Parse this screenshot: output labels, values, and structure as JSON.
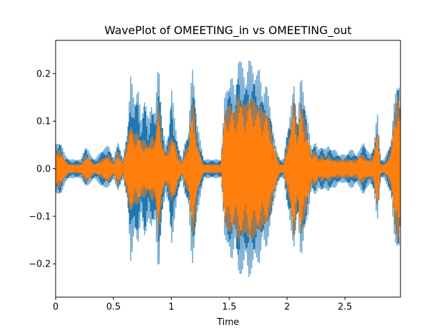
{
  "chart_data": {
    "type": "line",
    "title": "WavePlot of OMEETING_in vs OMEETING_out",
    "xlabel": "Time",
    "ylabel": "",
    "xlim": [
      0,
      2.98
    ],
    "ylim": [
      -0.27,
      0.27
    ],
    "grid": false,
    "x_ticks": [
      {
        "value": 0,
        "label": "0"
      },
      {
        "value": 0.5,
        "label": "0.5"
      },
      {
        "value": 1,
        "label": "1"
      },
      {
        "value": 1.5,
        "label": "1.5"
      },
      {
        "value": 2,
        "label": "2"
      },
      {
        "value": 2.5,
        "label": "2.5"
      }
    ],
    "y_ticks": [
      {
        "value": 0.2,
        "label": "0.2"
      },
      {
        "value": 0.1,
        "label": "0.1"
      },
      {
        "value": 0.0,
        "label": "0.0"
      },
      {
        "value": -0.1,
        "label": "−0.1"
      },
      {
        "value": -0.2,
        "label": "−0.2"
      }
    ],
    "series": [
      {
        "color": "#1f77b4",
        "envelope": {
          "x": [
            0,
            0.04,
            0.08,
            0.12,
            0.16,
            0.2,
            0.22,
            0.26,
            0.3,
            0.34,
            0.4,
            0.46,
            0.5,
            0.54,
            0.58,
            0.62,
            0.65,
            0.68,
            0.71,
            0.74,
            0.77,
            0.8,
            0.83,
            0.86,
            0.89,
            0.92,
            0.95,
            0.98,
            1.0,
            1.03,
            1.06,
            1.09,
            1.12,
            1.15,
            1.18,
            1.2,
            1.22,
            1.25,
            1.28,
            1.31,
            1.34,
            1.37,
            1.4,
            1.43,
            1.46,
            1.49,
            1.52,
            1.55,
            1.58,
            1.61,
            1.64,
            1.67,
            1.7,
            1.73,
            1.76,
            1.79,
            1.82,
            1.85,
            1.88,
            1.91,
            1.94,
            1.97,
            2.0,
            2.03,
            2.06,
            2.09,
            2.12,
            2.15,
            2.18,
            2.21,
            2.24,
            2.27,
            2.3,
            2.33,
            2.36,
            2.39,
            2.42,
            2.45,
            2.48,
            2.51,
            2.54,
            2.57,
            2.6,
            2.63,
            2.66,
            2.69,
            2.72,
            2.75,
            2.78,
            2.81,
            2.84,
            2.87,
            2.9,
            2.93,
            2.96,
            2.98
          ],
          "pos": [
            0.05,
            0.06,
            0.03,
            0.02,
            0.02,
            0.02,
            0.02,
            0.05,
            0.03,
            0.02,
            0.04,
            0.05,
            0.02,
            0.06,
            0.02,
            0.08,
            0.2,
            0.14,
            0.18,
            0.1,
            0.16,
            0.1,
            0.14,
            0.12,
            0.23,
            0.1,
            0.05,
            0.08,
            0.18,
            0.1,
            0.05,
            0.02,
            0.06,
            0.08,
            0.22,
            0.18,
            0.1,
            0.06,
            0.02,
            0.02,
            0.02,
            0.02,
            0.02,
            0.02,
            0.15,
            0.18,
            0.2,
            0.16,
            0.24,
            0.22,
            0.19,
            0.23,
            0.22,
            0.2,
            0.21,
            0.16,
            0.18,
            0.14,
            0.08,
            0.04,
            0.02,
            0.02,
            0.08,
            0.12,
            0.18,
            0.1,
            0.2,
            0.15,
            0.1,
            0.04,
            0.06,
            0.04,
            0.05,
            0.04,
            0.05,
            0.04,
            0.04,
            0.03,
            0.03,
            0.03,
            0.04,
            0.04,
            0.03,
            0.04,
            0.06,
            0.04,
            0.03,
            0.05,
            0.12,
            0.02,
            0.02,
            0.04,
            0.06,
            0.15,
            0.2,
            0.16
          ],
          "neg": [
            0.05,
            0.06,
            0.03,
            0.02,
            0.02,
            0.02,
            0.02,
            0.04,
            0.03,
            0.02,
            0.04,
            0.04,
            0.02,
            0.05,
            0.02,
            0.07,
            0.2,
            0.13,
            0.17,
            0.09,
            0.16,
            0.1,
            0.13,
            0.11,
            0.23,
            0.1,
            0.05,
            0.08,
            0.17,
            0.1,
            0.05,
            0.02,
            0.06,
            0.08,
            0.21,
            0.17,
            0.1,
            0.06,
            0.02,
            0.02,
            0.02,
            0.02,
            0.02,
            0.02,
            0.14,
            0.17,
            0.2,
            0.15,
            0.23,
            0.22,
            0.19,
            0.23,
            0.21,
            0.19,
            0.2,
            0.15,
            0.17,
            0.13,
            0.08,
            0.04,
            0.02,
            0.02,
            0.08,
            0.12,
            0.17,
            0.1,
            0.19,
            0.14,
            0.1,
            0.04,
            0.06,
            0.04,
            0.05,
            0.04,
            0.05,
            0.04,
            0.04,
            0.03,
            0.03,
            0.03,
            0.04,
            0.04,
            0.03,
            0.04,
            0.06,
            0.04,
            0.03,
            0.05,
            0.11,
            0.02,
            0.02,
            0.04,
            0.06,
            0.15,
            0.19,
            0.15
          ]
        }
      },
      {
        "color": "#ff7f0e",
        "envelope": {
          "x": [
            0,
            0.04,
            0.08,
            0.12,
            0.16,
            0.2,
            0.22,
            0.26,
            0.3,
            0.34,
            0.4,
            0.46,
            0.5,
            0.54,
            0.58,
            0.62,
            0.65,
            0.68,
            0.71,
            0.74,
            0.77,
            0.8,
            0.83,
            0.86,
            0.89,
            0.92,
            0.95,
            0.98,
            1.0,
            1.03,
            1.06,
            1.09,
            1.12,
            1.15,
            1.18,
            1.2,
            1.22,
            1.25,
            1.28,
            1.31,
            1.34,
            1.37,
            1.4,
            1.43,
            1.46,
            1.49,
            1.52,
            1.55,
            1.58,
            1.61,
            1.64,
            1.67,
            1.7,
            1.73,
            1.76,
            1.79,
            1.82,
            1.85,
            1.88,
            1.91,
            1.94,
            1.97,
            2.0,
            2.03,
            2.06,
            2.09,
            2.12,
            2.15,
            2.18,
            2.21,
            2.24,
            2.27,
            2.3,
            2.33,
            2.36,
            2.39,
            2.42,
            2.45,
            2.48,
            2.51,
            2.54,
            2.57,
            2.6,
            2.63,
            2.66,
            2.69,
            2.72,
            2.75,
            2.78,
            2.81,
            2.84,
            2.87,
            2.9,
            2.93,
            2.96,
            2.98
          ],
          "pos": [
            0.04,
            0.04,
            0.02,
            0.01,
            0.01,
            0.01,
            0.01,
            0.03,
            0.02,
            0.01,
            0.02,
            0.03,
            0.01,
            0.04,
            0.01,
            0.06,
            0.1,
            0.07,
            0.08,
            0.06,
            0.06,
            0.05,
            0.07,
            0.06,
            0.15,
            0.06,
            0.03,
            0.05,
            0.07,
            0.06,
            0.03,
            0.01,
            0.04,
            0.05,
            0.15,
            0.12,
            0.06,
            0.03,
            0.01,
            0.01,
            0.01,
            0.01,
            0.01,
            0.01,
            0.12,
            0.13,
            0.14,
            0.12,
            0.16,
            0.15,
            0.13,
            0.16,
            0.15,
            0.14,
            0.14,
            0.12,
            0.13,
            0.1,
            0.06,
            0.03,
            0.01,
            0.01,
            0.05,
            0.08,
            0.16,
            0.07,
            0.15,
            0.1,
            0.07,
            0.03,
            0.04,
            0.02,
            0.03,
            0.02,
            0.03,
            0.02,
            0.02,
            0.02,
            0.02,
            0.02,
            0.02,
            0.02,
            0.02,
            0.03,
            0.03,
            0.02,
            0.02,
            0.03,
            0.09,
            0.01,
            0.01,
            0.02,
            0.04,
            0.12,
            0.16,
            0.13
          ],
          "neg": [
            0.04,
            0.04,
            0.02,
            0.01,
            0.01,
            0.01,
            0.01,
            0.03,
            0.02,
            0.01,
            0.02,
            0.03,
            0.01,
            0.04,
            0.01,
            0.06,
            0.1,
            0.07,
            0.08,
            0.06,
            0.06,
            0.05,
            0.07,
            0.06,
            0.15,
            0.06,
            0.03,
            0.05,
            0.07,
            0.06,
            0.03,
            0.01,
            0.04,
            0.05,
            0.15,
            0.12,
            0.06,
            0.03,
            0.01,
            0.01,
            0.01,
            0.01,
            0.01,
            0.01,
            0.12,
            0.13,
            0.14,
            0.12,
            0.16,
            0.15,
            0.13,
            0.16,
            0.15,
            0.14,
            0.14,
            0.12,
            0.13,
            0.1,
            0.06,
            0.03,
            0.01,
            0.01,
            0.05,
            0.08,
            0.16,
            0.07,
            0.15,
            0.1,
            0.07,
            0.03,
            0.04,
            0.02,
            0.03,
            0.02,
            0.03,
            0.02,
            0.02,
            0.02,
            0.02,
            0.02,
            0.02,
            0.02,
            0.02,
            0.03,
            0.03,
            0.02,
            0.02,
            0.03,
            0.09,
            0.01,
            0.01,
            0.02,
            0.04,
            0.12,
            0.16,
            0.13
          ]
        }
      }
    ]
  }
}
